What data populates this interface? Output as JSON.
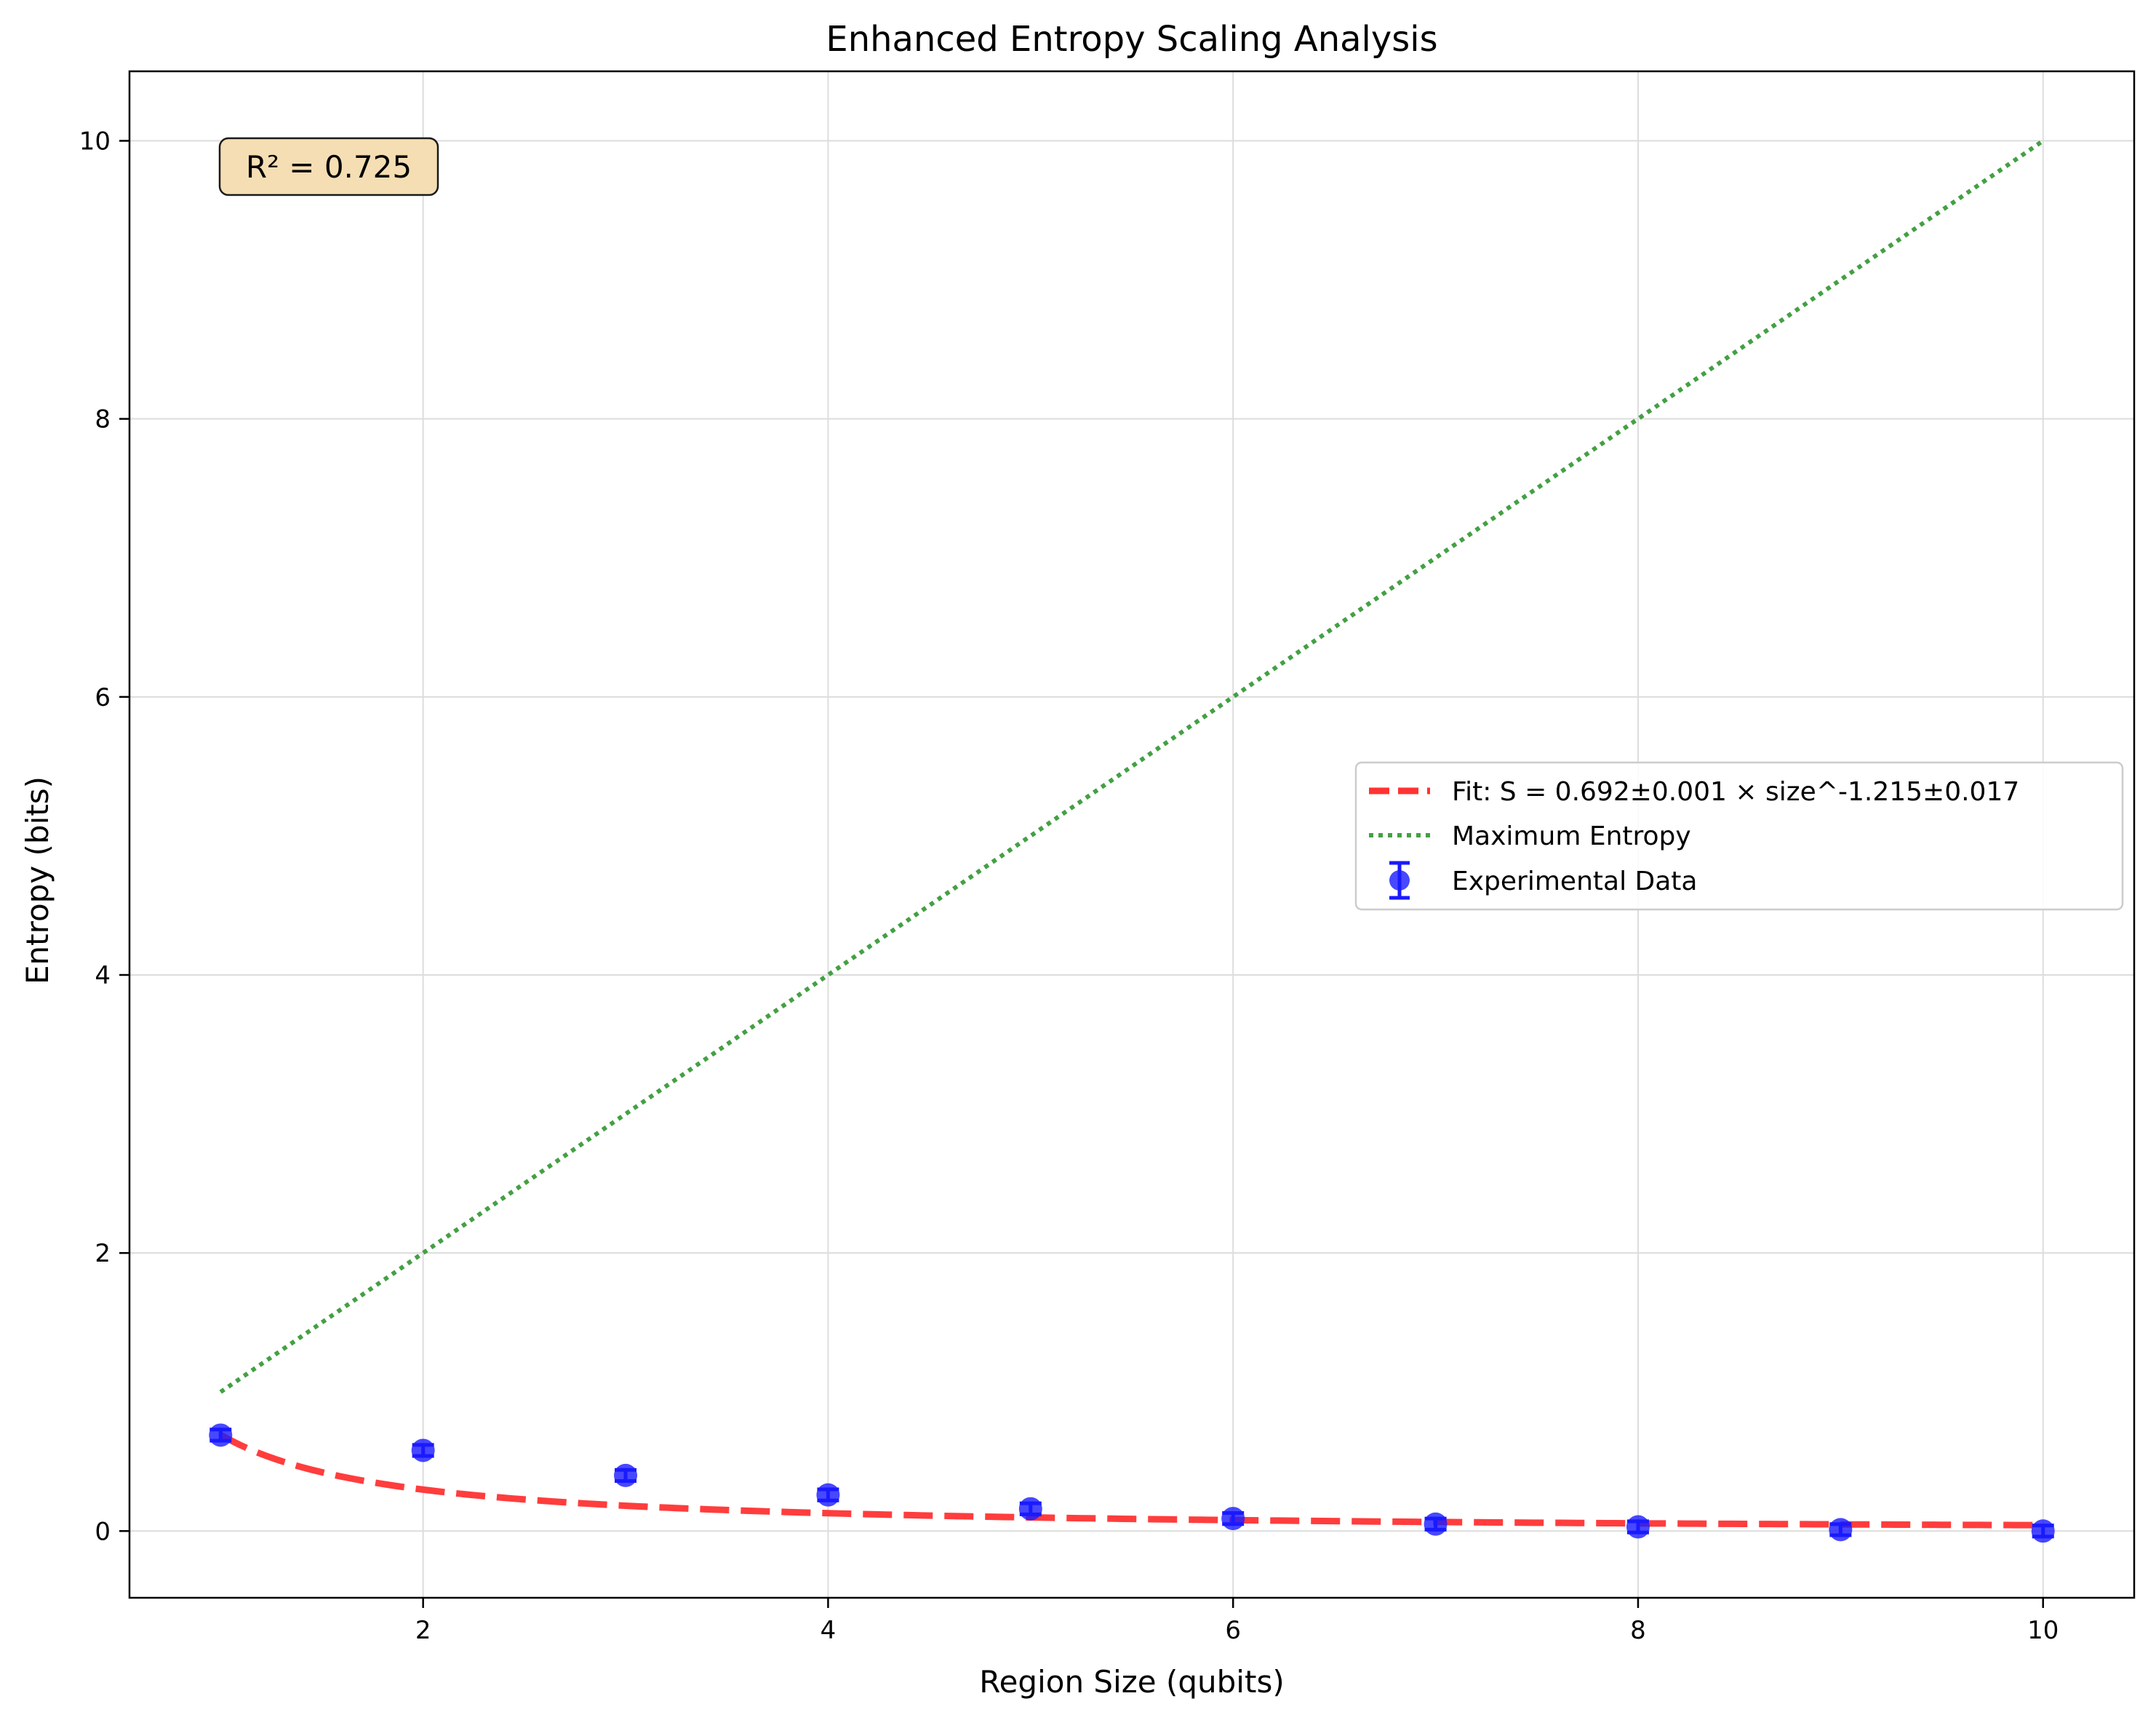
{
  "chart_data": {
    "type": "scatter",
    "title": "Enhanced Entropy Scaling Analysis",
    "xlabel": "Region Size (qubits)",
    "ylabel": "Entropy (bits)",
    "xlim": [
      0.55,
      10.45
    ],
    "ylim": [
      -0.48,
      10.5
    ],
    "x_ticks": [
      2,
      4,
      6,
      8,
      10
    ],
    "y_ticks": [
      0,
      2,
      4,
      6,
      8,
      10
    ],
    "grid": true,
    "legend_position": "center-right",
    "annotation": "R² = 0.725",
    "series": [
      {
        "name": "Fit: S = 0.692±0.001 × size^-1.215±0.017",
        "kind": "line",
        "style": "dashed",
        "color": "#ff3333",
        "a": 0.692,
        "b": -1.215,
        "x_range": [
          1,
          10
        ]
      },
      {
        "name": "Maximum Entropy",
        "kind": "line",
        "style": "dotted",
        "color": "#44a044",
        "x": [
          1,
          10
        ],
        "y": [
          1,
          10
        ]
      },
      {
        "name": "Experimental Data",
        "kind": "errorbar",
        "color": "#1a1aff",
        "x": [
          1,
          2,
          3,
          4,
          5,
          6,
          7,
          8,
          9,
          10
        ],
        "y": [
          0.69,
          0.58,
          0.4,
          0.26,
          0.16,
          0.09,
          0.05,
          0.03,
          0.01,
          0.0
        ],
        "yerr": [
          0.04,
          0.04,
          0.04,
          0.04,
          0.04,
          0.04,
          0.04,
          0.04,
          0.04,
          0.04
        ]
      }
    ]
  }
}
